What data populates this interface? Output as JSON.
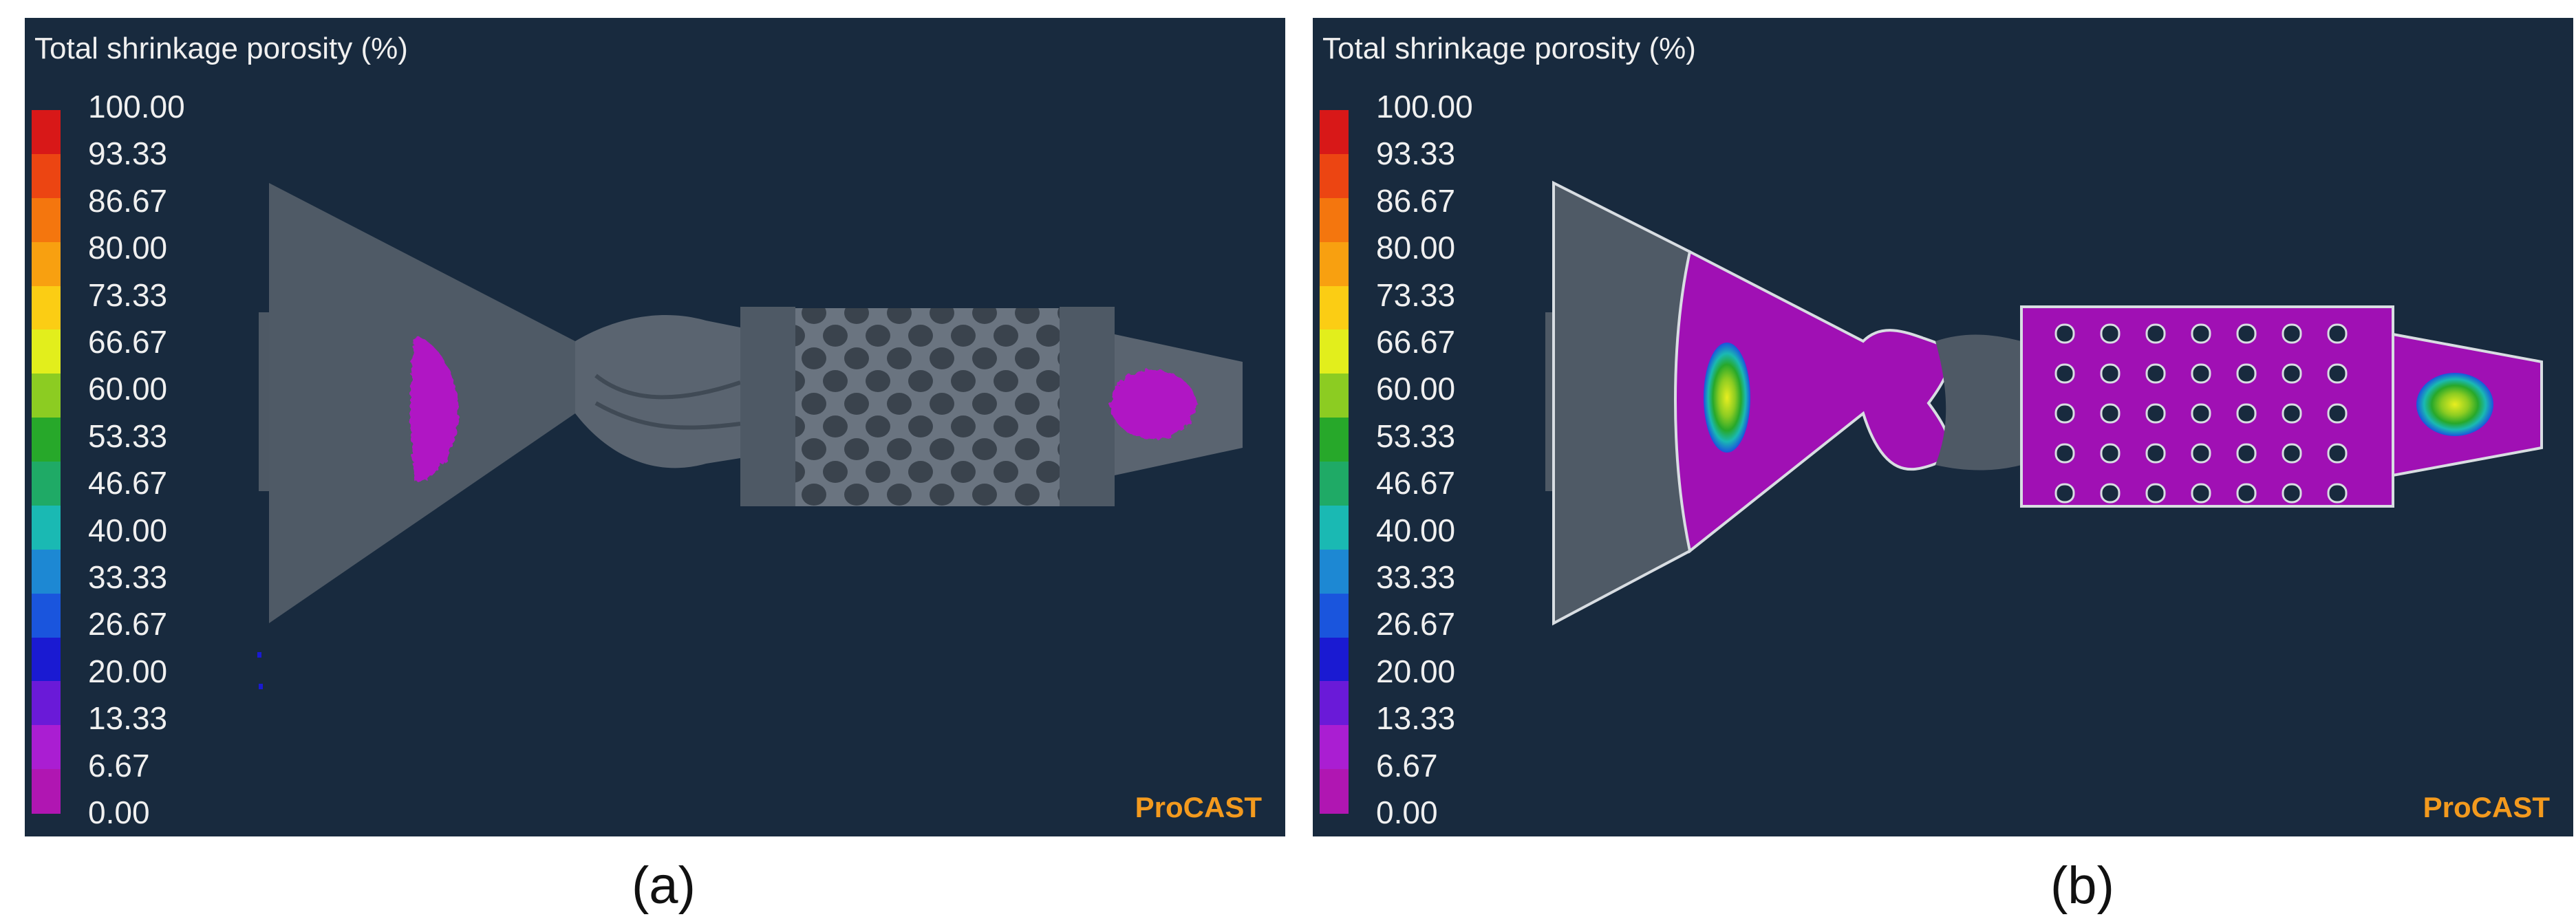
{
  "panels": [
    {
      "title": "Total shrinkage porosity (%)",
      "brand": "ProCAST",
      "caption": "(a)"
    },
    {
      "title": "Total shrinkage porosity (%)",
      "brand": "ProCAST",
      "caption": "(b)"
    }
  ],
  "scale": {
    "ticks": [
      "100.00",
      "93.33",
      "86.67",
      "80.00",
      "73.33",
      "66.67",
      "60.00",
      "53.33",
      "46.67",
      "40.00",
      "33.33",
      "26.67",
      "20.00",
      "13.33",
      "6.67",
      "0.00"
    ],
    "colors": [
      "#d81818",
      "#ec4512",
      "#f4760e",
      "#f8a010",
      "#fbcd14",
      "#e2ee1c",
      "#8ccc22",
      "#27a82a",
      "#1faa66",
      "#1ab9b3",
      "#1d88d3",
      "#1a55dd",
      "#1a1ad2",
      "#6a1ad8",
      "#aa1ed2",
      "#b016b2"
    ]
  }
}
